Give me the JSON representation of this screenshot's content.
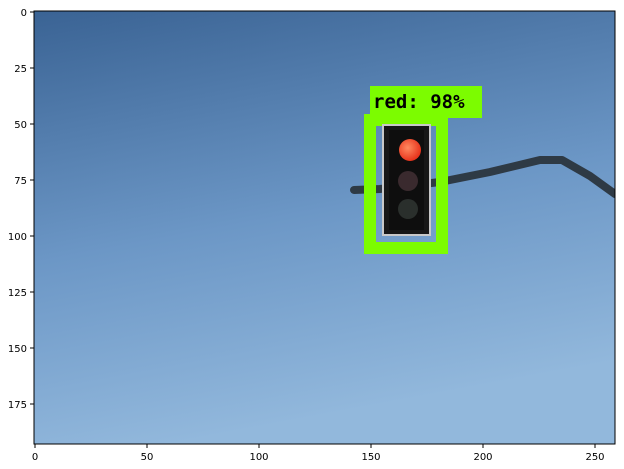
{
  "figure": {
    "x_ticks": [
      "0",
      "50",
      "100",
      "150",
      "200",
      "250"
    ],
    "y_ticks": [
      "0",
      "25",
      "50",
      "75",
      "100",
      "125",
      "150",
      "175"
    ]
  },
  "detection": {
    "label": "red: 98%",
    "box_color": "#7cfc00"
  },
  "colors": {
    "sky_top": "#3d6596",
    "sky_bottom": "#8fb6da",
    "pole": "#2e3a45",
    "light_housing": "#1a1a1a",
    "red_lamp": "#ff4a2e"
  }
}
